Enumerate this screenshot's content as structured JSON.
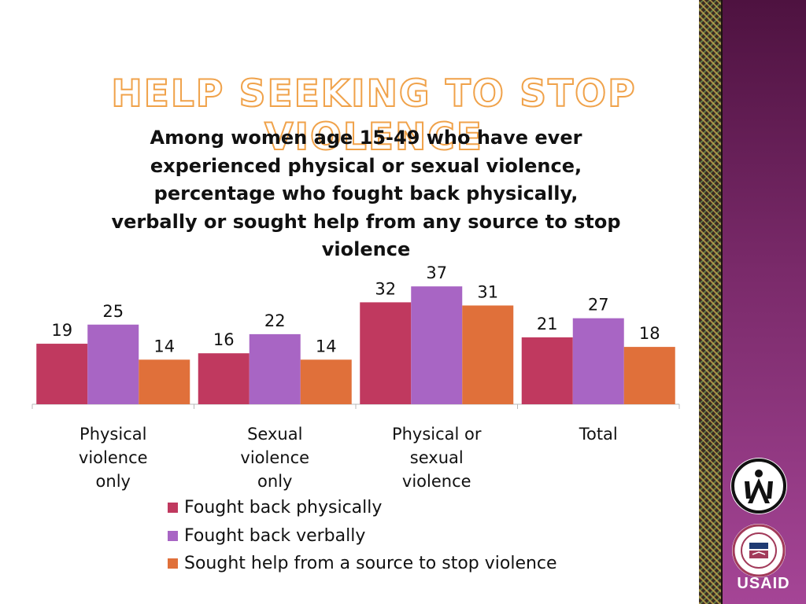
{
  "slide": {
    "title": "HELP SEEKING TO STOP VIOLENCE",
    "logo_text": "USAID"
  },
  "colors": {
    "series_1": "#c0395f",
    "series_2": "#a865c4",
    "series_3": "#e0703a",
    "title_outline": "#f0a24a",
    "panel": "#7a2a6a"
  },
  "icons": [
    "hiv-ribbon-people-logo",
    "usaid-seal"
  ],
  "chart_data": {
    "type": "bar",
    "title": "Among women age 15-49 who have ever experienced physical or sexual violence, percentage who fought back physically, verbally or sought help from any source to stop violence",
    "categories": [
      [
        "Physical",
        "violence",
        "only"
      ],
      [
        "Sexual",
        "violence",
        "only"
      ],
      [
        "Physical or",
        "sexual",
        "violence"
      ],
      [
        "Total"
      ]
    ],
    "series": [
      {
        "name": "Fought back physically",
        "values": [
          19,
          16,
          32,
          21
        ]
      },
      {
        "name": "Fought back verbally",
        "values": [
          25,
          22,
          37,
          27
        ]
      },
      {
        "name": "Sought help from a source to stop violence",
        "values": [
          14,
          14,
          31,
          18
        ]
      }
    ],
    "ylim": [
      0,
      40
    ],
    "grid": false,
    "legend_position": "bottom",
    "data_labels": true
  }
}
